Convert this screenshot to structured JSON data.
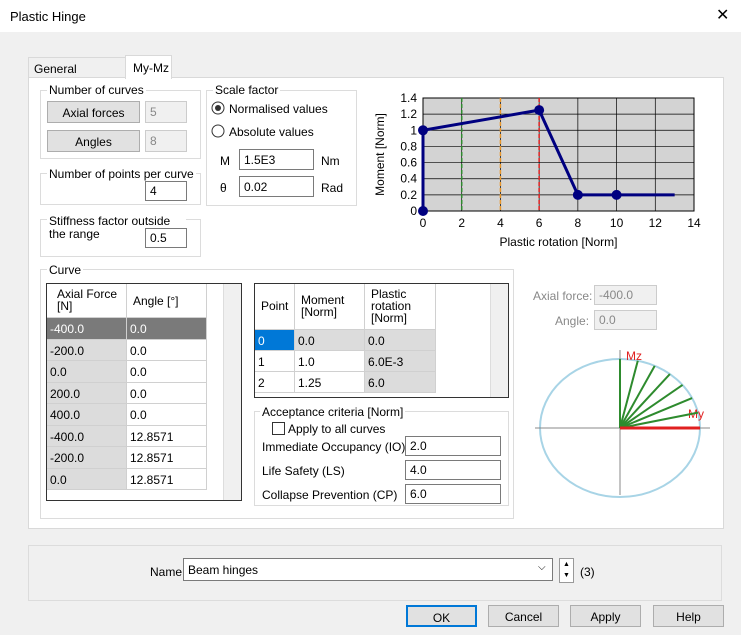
{
  "window": {
    "title": "Plastic Hinge"
  },
  "tabs": [
    "General Properties",
    "My-Mz"
  ],
  "number_of_curves": {
    "title": "Number of curves",
    "axial_forces": {
      "label": "Axial forces",
      "value": "5"
    },
    "angles": {
      "label": "Angles",
      "value": "8"
    }
  },
  "points_per_curve": {
    "label": "Number of points per curve",
    "value": "4"
  },
  "stiffness": {
    "label": "Stiffness factor outside the range",
    "value": "0.5"
  },
  "scale_factor": {
    "title": "Scale factor",
    "options": [
      "Normalised values",
      "Absolute values"
    ],
    "m": {
      "label": "M",
      "value": "1.5E3",
      "unit": "Nm"
    },
    "theta": {
      "label": "θ",
      "value": "0.02",
      "unit": "Rad"
    }
  },
  "chart_data": {
    "type": "line",
    "x_label": "Plastic rotation [Norm]",
    "y_label": "Moment [Norm]",
    "x": [
      0,
      0,
      6,
      8,
      10,
      13
    ],
    "series": [
      {
        "color": "#000080",
        "values": [
          0,
          1,
          1.25,
          0.2,
          0.2,
          0.2
        ],
        "markers": [
          true,
          true,
          true,
          true,
          true,
          false
        ]
      }
    ],
    "reference_lines": [
      {
        "x": 2,
        "color": "#2e8b2e"
      },
      {
        "x": 4,
        "color": "#e8952a"
      },
      {
        "x": 6,
        "color": "#e02020"
      }
    ],
    "xlim": [
      0,
      14
    ],
    "ylim": [
      0,
      1.4
    ],
    "xticks": [
      0,
      2,
      4,
      6,
      8,
      10,
      12,
      14
    ],
    "yticks": [
      0,
      0.2,
      0.4,
      0.6,
      0.8,
      1,
      1.2,
      1.4
    ],
    "grid": true
  },
  "curve": {
    "title": "Curve",
    "columns": [
      "Axial Force [N]",
      "Angle [°]"
    ],
    "rows": [
      [
        "-400.0",
        "0.0"
      ],
      [
        "-200.0",
        "0.0"
      ],
      [
        "0.0",
        "0.0"
      ],
      [
        "200.0",
        "0.0"
      ],
      [
        "400.0",
        "0.0"
      ],
      [
        "-400.0",
        "12.8571"
      ],
      [
        "-200.0",
        "12.8571"
      ],
      [
        "0.0",
        "12.8571"
      ]
    ]
  },
  "points_table": {
    "columns": [
      "Point",
      "Moment [Norm]",
      "Plastic rotation [Norm]"
    ],
    "rows": [
      [
        "0",
        "0.0",
        "0.0"
      ],
      [
        "1",
        "1.0",
        "6.0E-3"
      ],
      [
        "2",
        "1.25",
        "6.0"
      ]
    ]
  },
  "acceptance": {
    "title": "Acceptance criteria [Norm]",
    "apply_all": "Apply to all curves",
    "rows": [
      {
        "label": "Immediate Occupancy (IO)",
        "value": "2.0"
      },
      {
        "label": "Life Safety (LS)",
        "value": "4.0"
      },
      {
        "label": "Collapse Prevention (CP)",
        "value": "6.0"
      }
    ]
  },
  "preview": {
    "axial_force": {
      "label": "Axial force:",
      "value": "-400.0"
    },
    "angle": {
      "label": "Angle:",
      "value": "0.0"
    },
    "axes": [
      "Mz",
      "My"
    ]
  },
  "name": {
    "label": "Name",
    "value": "Beam hinges",
    "count": "(3)"
  },
  "buttons": [
    "OK",
    "Cancel",
    "Apply",
    "Help"
  ]
}
